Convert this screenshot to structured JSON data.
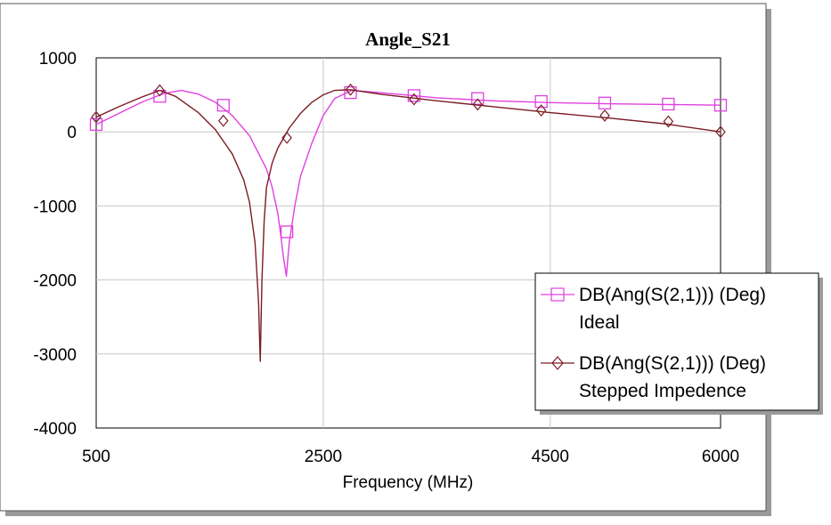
{
  "chart_data": {
    "type": "line",
    "title": "Angle_S21",
    "xlabel": "Frequency (MHz)",
    "ylabel": "",
    "xlim": [
      500,
      6000
    ],
    "ylim": [
      -4000,
      1000
    ],
    "x_ticks": [
      "500",
      "2500",
      "4500",
      "6000"
    ],
    "x_tick_values": [
      500,
      2500,
      4500,
      6000
    ],
    "y_ticks": [
      "1000",
      "0",
      "-1000",
      "-2000",
      "-3000",
      "-4000"
    ],
    "y_tick_values": [
      1000,
      0,
      -1000,
      -2000,
      -3000,
      -4000
    ],
    "grid": true,
    "legend_position": "bottom-right",
    "series": [
      {
        "name": "DB(Ang(S(2,1))) (Deg)",
        "name_line2": "Ideal",
        "color": "#e040e0",
        "marker": "square",
        "x": [
          500,
          700,
          900,
          1100,
          1250,
          1400,
          1550,
          1700,
          1850,
          2000,
          2050,
          2100,
          2130,
          2150,
          2175,
          2200,
          2250,
          2300,
          2400,
          2500,
          2600,
          2750,
          3000,
          3500,
          4000,
          4500,
          5000,
          5500,
          6000
        ],
        "y": [
          100,
          250,
          400,
          520,
          560,
          510,
          400,
          220,
          -50,
          -500,
          -750,
          -1100,
          -1450,
          -1700,
          -1950,
          -1500,
          -1000,
          -600,
          -150,
          220,
          450,
          560,
          530,
          460,
          420,
          395,
          380,
          370,
          360
        ],
        "marker_x": [
          500,
          1060,
          1620,
          2180,
          2740,
          3300,
          3860,
          4420,
          4980,
          5540,
          6000
        ],
        "marker_y": [
          100,
          480,
          360,
          -1350,
          530,
          490,
          450,
          410,
          390,
          375,
          360
        ]
      },
      {
        "name": "DB(Ang(S(2,1))) (Deg)",
        "name_line2": "Stepped Impedence",
        "color": "#7a1c24",
        "marker": "diamond",
        "x": [
          500,
          700,
          900,
          1060,
          1200,
          1400,
          1550,
          1700,
          1800,
          1850,
          1900,
          1930,
          1945,
          1960,
          1980,
          2000,
          2050,
          2100,
          2200,
          2300,
          2400,
          2500,
          2600,
          2740,
          3000,
          3500,
          4000,
          4500,
          5000,
          5500,
          6000
        ],
        "y": [
          200,
          340,
          470,
          560,
          480,
          260,
          30,
          -300,
          -650,
          -950,
          -1500,
          -2300,
          -3100,
          -2000,
          -1200,
          -750,
          -420,
          -220,
          50,
          250,
          400,
          500,
          560,
          570,
          510,
          420,
          340,
          260,
          190,
          110,
          0
        ],
        "marker_x": [
          500,
          1060,
          1620,
          2180,
          2740,
          3300,
          3860,
          4420,
          4980,
          5540,
          6000
        ],
        "marker_y": [
          200,
          560,
          150,
          -80,
          570,
          440,
          370,
          290,
          220,
          140,
          0
        ]
      }
    ]
  }
}
